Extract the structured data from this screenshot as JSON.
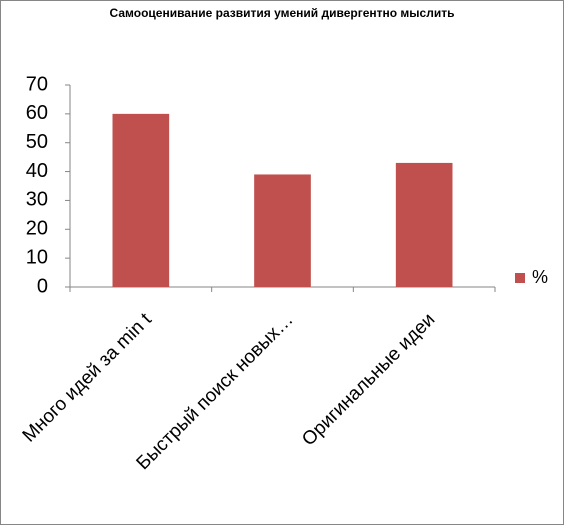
{
  "chart_data": {
    "type": "bar",
    "title": "Самооценивание развития умений дивергентно мыслить",
    "categories": [
      "Много идей за min t",
      "Быстрый поиск новых…",
      "Оригинальные идеи"
    ],
    "series": [
      {
        "name": "%",
        "color": "#c0504d",
        "values": [
          60,
          39,
          43
        ]
      }
    ],
    "ylim": [
      0,
      70
    ],
    "yticks": [
      0,
      10,
      20,
      30,
      40,
      50,
      60,
      70
    ],
    "grid": false,
    "legend": "right"
  }
}
